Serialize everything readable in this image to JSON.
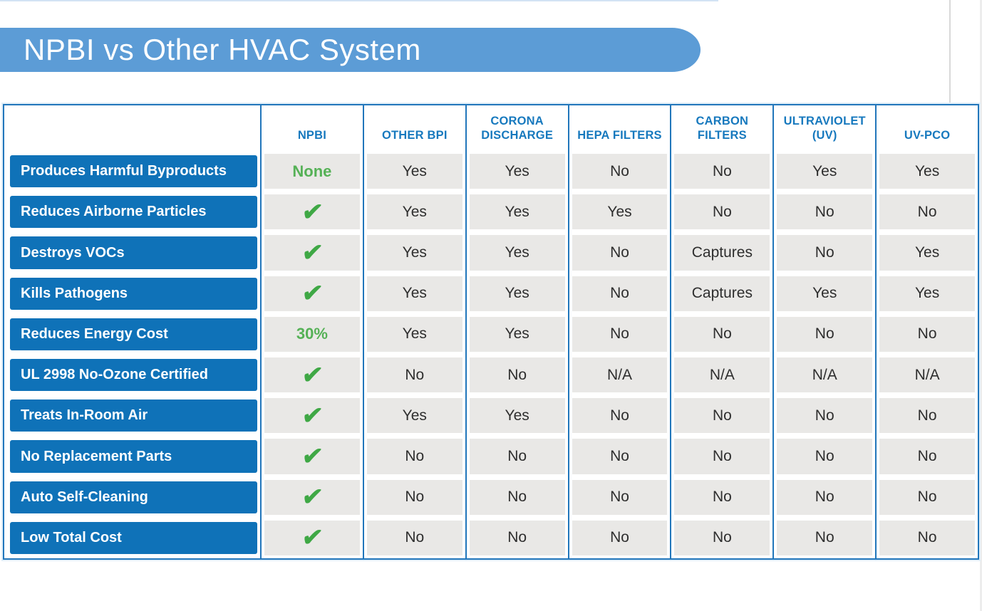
{
  "title": {
    "text": "NPBI vs Other HVAC System"
  },
  "colors": {
    "title_bar_blue": "#5C9CD6",
    "label_bar_blue": "#0F72B8",
    "header_text_blue": "#1779BE",
    "table_border_blue": "#2176BB",
    "cell_gray": "#E9E8E6",
    "cell_text": "#2E2E2E",
    "check_green": "#3FA845",
    "green_text": "#55B156"
  },
  "icons": {
    "check_glyph": "✔"
  },
  "table": {
    "columns": [
      "NPBI",
      "OTHER BPI",
      "CORONA DISCHARGE",
      "HEPA FILTERS",
      "CARBON FILTERS",
      "ULTRAVIOLET (UV)",
      "UV-PCO"
    ],
    "rows": [
      {
        "label": "Produces Harmful Byproducts",
        "npbi": "None",
        "values": [
          "Yes",
          "Yes",
          "No",
          "No",
          "Yes",
          "Yes"
        ]
      },
      {
        "label": "Reduces Airborne Particles",
        "npbi": "check",
        "values": [
          "Yes",
          "Yes",
          "Yes",
          "No",
          "No",
          "No"
        ]
      },
      {
        "label": "Destroys VOCs",
        "npbi": "check",
        "values": [
          "Yes",
          "Yes",
          "No",
          "Captures",
          "No",
          "Yes"
        ]
      },
      {
        "label": "Kills Pathogens",
        "npbi": "check",
        "values": [
          "Yes",
          "Yes",
          "No",
          "Captures",
          "Yes",
          "Yes"
        ]
      },
      {
        "label": "Reduces Energy Cost",
        "npbi": "30%",
        "values": [
          "Yes",
          "Yes",
          "No",
          "No",
          "No",
          "No"
        ]
      },
      {
        "label": "UL 2998 No-Ozone Certified",
        "npbi": "check",
        "values": [
          "No",
          "No",
          "N/A",
          "N/A",
          "N/A",
          "N/A"
        ]
      },
      {
        "label": "Treats In-Room Air",
        "npbi": "check",
        "values": [
          "Yes",
          "Yes",
          "No",
          "No",
          "No",
          "No"
        ]
      },
      {
        "label": "No Replacement Parts",
        "npbi": "check",
        "values": [
          "No",
          "No",
          "No",
          "No",
          "No",
          "No"
        ]
      },
      {
        "label": "Auto Self-Cleaning",
        "npbi": "check",
        "values": [
          "No",
          "No",
          "No",
          "No",
          "No",
          "No"
        ]
      },
      {
        "label": "Low Total Cost",
        "npbi": "check",
        "values": [
          "No",
          "No",
          "No",
          "No",
          "No",
          "No"
        ]
      }
    ]
  }
}
